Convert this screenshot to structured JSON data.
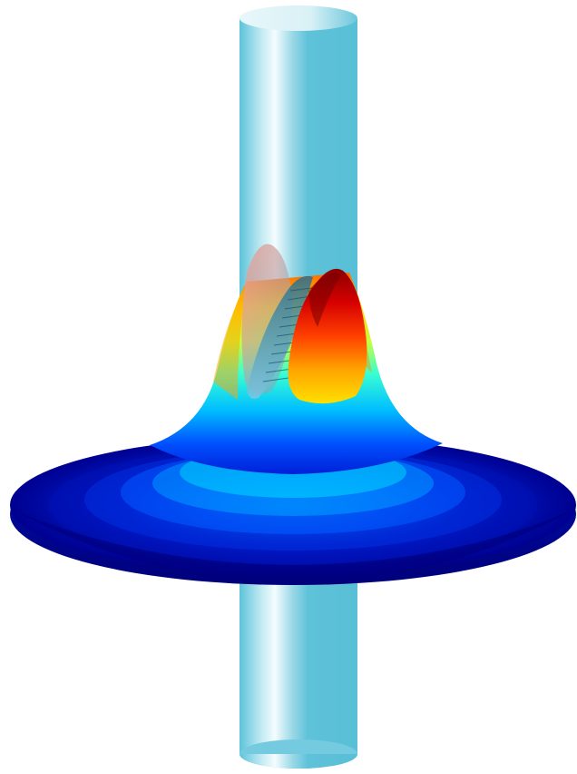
{
  "figure": {
    "description_colors": {
      "rod_light": "#eaf8fb",
      "rod_mid": "#8fd3e2",
      "rod_dark": "#58c0d8",
      "surface_low": "#00008f",
      "surface_mid_low": "#0050ff",
      "surface_mid": "#00e5ff",
      "surface_mid_high": "#b8ff3a",
      "surface_high": "#ffb000",
      "surface_peak": "#8b0000"
    },
    "elements": {
      "rod": "vertical-cylinder",
      "surface": "radial-field-surface",
      "wave_pulse": "elliptical-wave-fronts"
    }
  }
}
